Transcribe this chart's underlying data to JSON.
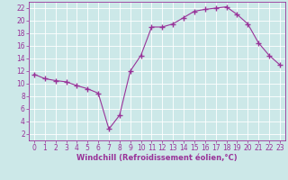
{
  "x": [
    0,
    1,
    2,
    3,
    4,
    5,
    6,
    7,
    8,
    9,
    10,
    11,
    12,
    13,
    14,
    15,
    16,
    17,
    18,
    19,
    20,
    21,
    22,
    23
  ],
  "y": [
    11.5,
    10.8,
    10.5,
    10.3,
    9.7,
    9.2,
    8.5,
    2.8,
    5.0,
    12.0,
    14.5,
    19.0,
    19.0,
    19.5,
    20.5,
    21.5,
    21.8,
    22.0,
    22.2,
    21.0,
    19.5,
    16.5,
    14.5,
    13.0
  ],
  "line_color": "#993399",
  "marker": "+",
  "bg_color": "#cce8e8",
  "grid_color": "#b0d0d0",
  "tick_color": "#993399",
  "label_color": "#993399",
  "xlabel": "Windchill (Refroidissement éolien,°C)",
  "xlim": [
    -0.5,
    23.5
  ],
  "ylim": [
    1,
    23
  ],
  "yticks": [
    2,
    4,
    6,
    8,
    10,
    12,
    14,
    16,
    18,
    20,
    22
  ],
  "xticks": [
    0,
    1,
    2,
    3,
    4,
    5,
    6,
    7,
    8,
    9,
    10,
    11,
    12,
    13,
    14,
    15,
    16,
    17,
    18,
    19,
    20,
    21,
    22,
    23
  ],
  "fontsize": 5.5,
  "xlabel_fontsize": 6.0
}
